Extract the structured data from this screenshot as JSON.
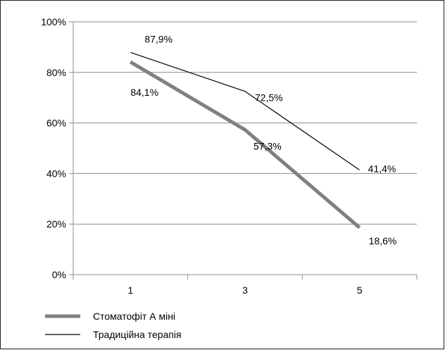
{
  "chart_data": {
    "type": "line",
    "title": "",
    "xlabel": "",
    "ylabel": "",
    "categories": [
      "1",
      "3",
      "5"
    ],
    "ylim": [
      0,
      100
    ],
    "yticks": [
      0,
      20,
      40,
      60,
      80,
      100
    ],
    "ytick_labels": [
      "0%",
      "20%",
      "40%",
      "60%",
      "80%",
      "100%"
    ],
    "grid": true,
    "legend_position": "bottom-left",
    "series": [
      {
        "name": "Стоматофіт А міні",
        "values": [
          84.1,
          57.3,
          18.6
        ],
        "labels": [
          "84,1%",
          "57,3%",
          "18,6%"
        ],
        "color": "#808080",
        "style": "thick"
      },
      {
        "name": "Традиційна терапія",
        "values": [
          87.9,
          72.5,
          41.4
        ],
        "labels": [
          "87,9%",
          "72,5%",
          "41,4%"
        ],
        "color": "#000000",
        "style": "thin"
      }
    ]
  }
}
